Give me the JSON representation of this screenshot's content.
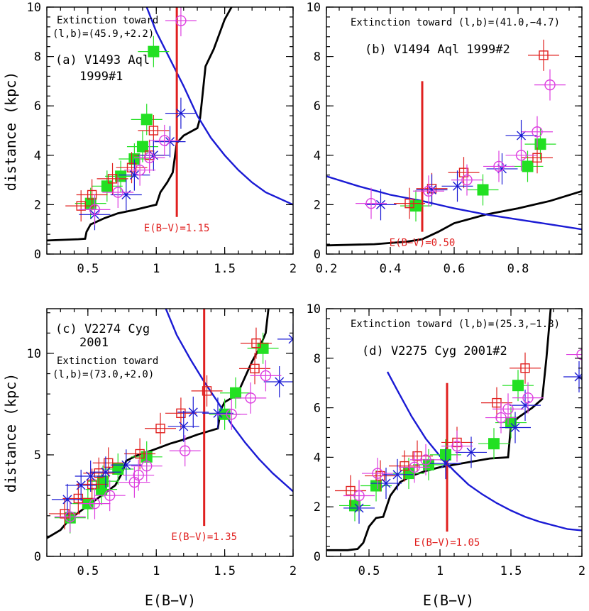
{
  "figure": {
    "ylabel": "distance (kpc)",
    "xlabel": "E(B−V)"
  },
  "colors": {
    "axis": "#000000",
    "black_curve": "#000000",
    "blue_curve": "#1a1ad4",
    "red_line": "#e0201f",
    "green": "#22e022",
    "red_marker": "#e0201f",
    "blue_marker": "#1a1ad4",
    "magenta_marker": "#dd3ee0"
  },
  "chart_data": [
    {
      "type": "scatter",
      "panel": "a",
      "label_lines": [
        "(a) V1493 Aql",
        "1999#1"
      ],
      "extinction_lines": [
        "Extinction toward",
        "(l,b)=(45.9,+2.2)"
      ],
      "xlim": [
        0.2,
        2.0
      ],
      "ylim": [
        0,
        10
      ],
      "xticks": [
        0.5,
        1,
        1.5,
        2
      ],
      "xtick_labels": [
        "0.5",
        "1",
        "1.5",
        "2"
      ],
      "yticks": [
        0,
        2,
        4,
        6,
        8,
        10
      ],
      "ytick_labels": [
        "0",
        "2",
        "4",
        "6",
        "8",
        "10"
      ],
      "ebv": 1.15,
      "ebv_label": "E(B−V)=1.15",
      "ebv_range": [
        1.5,
        10
      ],
      "black_curve": [
        [
          0.2,
          0.55
        ],
        [
          0.43,
          0.6
        ],
        [
          0.48,
          0.62
        ],
        [
          0.49,
          0.9
        ],
        [
          0.52,
          1.2
        ],
        [
          0.56,
          1.3
        ],
        [
          0.62,
          1.45
        ],
        [
          0.72,
          1.65
        ],
        [
          0.85,
          1.8
        ],
        [
          1.0,
          2.0
        ],
        [
          1.03,
          2.5
        ],
        [
          1.08,
          2.9
        ],
        [
          1.12,
          3.3
        ],
        [
          1.15,
          4.5
        ],
        [
          1.2,
          4.8
        ],
        [
          1.3,
          5.1
        ],
        [
          1.32,
          5.5
        ],
        [
          1.33,
          6.0
        ],
        [
          1.36,
          7.6
        ],
        [
          1.42,
          8.3
        ],
        [
          1.5,
          9.5
        ],
        [
          1.55,
          10.0
        ]
      ],
      "blue_curve": [
        [
          0.93,
          10.0
        ],
        [
          1.0,
          9.0
        ],
        [
          1.1,
          7.9
        ],
        [
          1.2,
          6.8
        ],
        [
          1.3,
          5.6
        ],
        [
          1.4,
          4.7
        ],
        [
          1.5,
          4.0
        ],
        [
          1.6,
          3.4
        ],
        [
          1.7,
          2.9
        ],
        [
          1.8,
          2.5
        ],
        [
          1.9,
          2.25
        ],
        [
          2.0,
          2.0
        ]
      ],
      "series": [
        {
          "marker": "square-filled",
          "color": "green",
          "points": [
            [
              0.52,
              2.05
            ],
            [
              0.64,
              2.75
            ],
            [
              0.74,
              3.15
            ],
            [
              0.84,
              3.85
            ],
            [
              0.9,
              4.35
            ],
            [
              0.93,
              5.45
            ],
            [
              0.98,
              8.2
            ]
          ]
        },
        {
          "marker": "square-open",
          "color": "red",
          "points": [
            [
              0.45,
              1.95
            ],
            [
              0.53,
              2.4
            ],
            [
              0.68,
              3.05
            ],
            [
              0.82,
              3.5
            ],
            [
              0.95,
              4.0
            ],
            [
              0.98,
              5.0
            ]
          ]
        },
        {
          "marker": "asterisk",
          "color": "blue",
          "points": [
            [
              0.55,
              1.6
            ],
            [
              0.78,
              2.4
            ],
            [
              0.84,
              3.2
            ],
            [
              0.98,
              4.0
            ],
            [
              1.1,
              4.55
            ],
            [
              1.18,
              5.7
            ]
          ]
        },
        {
          "marker": "circle-open",
          "color": "magenta",
          "points": [
            [
              0.55,
              1.8
            ],
            [
              0.72,
              2.5
            ],
            [
              0.88,
              3.4
            ],
            [
              0.95,
              3.9
            ],
            [
              1.06,
              4.6
            ],
            [
              1.18,
              9.45
            ]
          ]
        }
      ]
    },
    {
      "type": "scatter",
      "panel": "b",
      "label_lines": [
        "(b) V1494 Aql 1999#2"
      ],
      "extinction_lines": [
        "Extinction toward (l,b)=(41.0,−4.7)"
      ],
      "xlim": [
        0.2,
        1.0
      ],
      "ylim": [
        0,
        10
      ],
      "xticks": [
        0.2,
        0.4,
        0.6,
        0.8
      ],
      "xtick_labels": [
        "0.2",
        "0.4",
        "0.6",
        "0.8"
      ],
      "yticks": [
        0,
        2,
        4,
        6,
        8,
        10
      ],
      "ytick_labels": [
        "0",
        "2",
        "4",
        "6",
        "8",
        "10"
      ],
      "ebv": 0.5,
      "ebv_label": "E(B−V)=0.50",
      "ebv_range": [
        0.9,
        7.0
      ],
      "black_curve": [
        [
          0.2,
          0.35
        ],
        [
          0.35,
          0.4
        ],
        [
          0.45,
          0.5
        ],
        [
          0.5,
          0.6
        ],
        [
          0.55,
          0.9
        ],
        [
          0.6,
          1.25
        ],
        [
          0.7,
          1.6
        ],
        [
          0.8,
          1.85
        ],
        [
          0.9,
          2.15
        ],
        [
          1.0,
          2.55
        ]
      ],
      "blue_curve": [
        [
          0.2,
          3.15
        ],
        [
          0.3,
          2.75
        ],
        [
          0.4,
          2.4
        ],
        [
          0.5,
          2.15
        ],
        [
          0.6,
          1.85
        ],
        [
          0.7,
          1.6
        ],
        [
          0.8,
          1.4
        ],
        [
          0.9,
          1.2
        ],
        [
          1.0,
          1.0
        ]
      ],
      "series": [
        {
          "marker": "square-filled",
          "color": "green",
          "points": [
            [
              0.48,
              1.95
            ],
            [
              0.69,
              2.6
            ],
            [
              0.83,
              3.55
            ],
            [
              0.87,
              4.45
            ]
          ]
        },
        {
          "marker": "square-open",
          "color": "red",
          "points": [
            [
              0.46,
              2.05
            ],
            [
              0.53,
              2.65
            ],
            [
              0.63,
              3.3
            ],
            [
              0.86,
              3.9
            ],
            [
              0.88,
              8.05
            ]
          ]
        },
        {
          "marker": "asterisk",
          "color": "blue",
          "points": [
            [
              0.37,
              2.0
            ],
            [
              0.53,
              2.6
            ],
            [
              0.61,
              2.75
            ],
            [
              0.75,
              3.45
            ],
            [
              0.81,
              4.8
            ]
          ]
        },
        {
          "marker": "circle-open",
          "color": "magenta",
          "points": [
            [
              0.34,
              2.05
            ],
            [
              0.52,
              2.55
            ],
            [
              0.64,
              3.0
            ],
            [
              0.74,
              3.55
            ],
            [
              0.81,
              4.0
            ],
            [
              0.86,
              4.95
            ],
            [
              0.9,
              6.85
            ]
          ]
        }
      ]
    },
    {
      "type": "scatter",
      "panel": "c",
      "label_lines": [
        "(c) V2274 Cyg",
        "2001"
      ],
      "extinction_lines": [
        "Extinction toward",
        "(l,b)=(73.0,+2.0)"
      ],
      "xlim": [
        0.2,
        2.0
      ],
      "ylim": [
        0,
        12.2
      ],
      "xticks": [
        0.5,
        1,
        1.5,
        2
      ],
      "xtick_labels": [
        "0.5",
        "1",
        "1.5",
        "2"
      ],
      "yticks": [
        0,
        5,
        10
      ],
      "ytick_labels": [
        "0",
        "5",
        "10"
      ],
      "ebv": 1.35,
      "ebv_label": "E(B−V)=1.35",
      "ebv_range": [
        1.5,
        12.2
      ],
      "black_curve": [
        [
          0.2,
          0.9
        ],
        [
          0.3,
          1.3
        ],
        [
          0.35,
          1.7
        ],
        [
          0.4,
          2.0
        ],
        [
          0.5,
          2.5
        ],
        [
          0.6,
          3.0
        ],
        [
          0.7,
          3.5
        ],
        [
          0.75,
          4.1
        ],
        [
          0.78,
          4.7
        ],
        [
          0.85,
          4.95
        ],
        [
          0.98,
          5.25
        ],
        [
          1.1,
          5.55
        ],
        [
          1.2,
          5.75
        ],
        [
          1.3,
          6.0
        ],
        [
          1.45,
          6.3
        ],
        [
          1.47,
          7.2
        ],
        [
          1.5,
          7.6
        ],
        [
          1.55,
          7.8
        ],
        [
          1.6,
          8.1
        ],
        [
          1.7,
          9.6
        ],
        [
          1.75,
          10.2
        ],
        [
          1.8,
          11.0
        ],
        [
          1.82,
          12.2
        ]
      ],
      "blue_curve": [
        [
          1.07,
          12.2
        ],
        [
          1.15,
          10.9
        ],
        [
          1.25,
          9.7
        ],
        [
          1.35,
          8.6
        ],
        [
          1.45,
          7.6
        ],
        [
          1.55,
          6.5
        ],
        [
          1.65,
          5.6
        ],
        [
          1.75,
          4.8
        ],
        [
          1.85,
          4.1
        ],
        [
          1.95,
          3.5
        ],
        [
          2.0,
          3.2
        ]
      ],
      "series": [
        {
          "marker": "square-filled",
          "color": "green",
          "points": [
            [
              0.37,
              1.9
            ],
            [
              0.5,
              2.6
            ],
            [
              0.6,
              3.3
            ],
            [
              0.61,
              3.7
            ],
            [
              0.72,
              4.3
            ],
            [
              0.93,
              4.9
            ],
            [
              1.5,
              7.0
            ],
            [
              1.58,
              8.05
            ],
            [
              1.78,
              10.25
            ]
          ]
        },
        {
          "marker": "square-open",
          "color": "red",
          "points": [
            [
              0.33,
              2.1
            ],
            [
              0.43,
              2.85
            ],
            [
              0.53,
              3.55
            ],
            [
              0.58,
              4.1
            ],
            [
              0.65,
              4.6
            ],
            [
              0.88,
              5.05
            ],
            [
              1.03,
              6.3
            ],
            [
              1.18,
              7.05
            ],
            [
              1.37,
              8.15
            ],
            [
              1.72,
              9.25
            ],
            [
              1.73,
              10.5
            ]
          ]
        },
        {
          "marker": "asterisk",
          "color": "blue",
          "points": [
            [
              0.35,
              2.8
            ],
            [
              0.45,
              3.5
            ],
            [
              0.52,
              3.95
            ],
            [
              0.63,
              4.15
            ],
            [
              0.78,
              4.5
            ],
            [
              1.2,
              6.4
            ],
            [
              1.27,
              7.1
            ],
            [
              1.45,
              7.05
            ],
            [
              1.9,
              8.6
            ],
            [
              2.0,
              10.7
            ]
          ]
        },
        {
          "marker": "circle-open",
          "color": "magenta",
          "points": [
            [
              0.37,
              1.95
            ],
            [
              0.55,
              2.6
            ],
            [
              0.66,
              3.0
            ],
            [
              0.84,
              3.65
            ],
            [
              0.87,
              4.0
            ],
            [
              0.93,
              4.45
            ],
            [
              1.21,
              5.2
            ],
            [
              1.55,
              7.0
            ],
            [
              1.69,
              7.8
            ],
            [
              1.8,
              8.9
            ]
          ]
        }
      ]
    },
    {
      "type": "scatter",
      "panel": "d",
      "label_lines": [
        "(d) V2275 Cyg 2001#2"
      ],
      "extinction_lines": [
        "Extinction toward (l,b)=(25.3,−1.8)"
      ],
      "xlim": [
        0.2,
        2.0
      ],
      "ylim": [
        0,
        10
      ],
      "xticks": [
        0.5,
        1,
        1.5,
        2
      ],
      "xtick_labels": [
        "0.5",
        "1",
        "1.5",
        "2"
      ],
      "yticks": [
        0,
        2,
        4,
        6,
        8,
        10
      ],
      "ytick_labels": [
        "0",
        "2",
        "4",
        "6",
        "8",
        "10"
      ],
      "ebv": 1.05,
      "ebv_label": "E(B−V)=1.05",
      "ebv_range": [
        1.0,
        7.0
      ],
      "black_curve": [
        [
          0.2,
          0.25
        ],
        [
          0.35,
          0.25
        ],
        [
          0.42,
          0.3
        ],
        [
          0.46,
          0.55
        ],
        [
          0.5,
          1.2
        ],
        [
          0.55,
          1.55
        ],
        [
          0.6,
          1.6
        ],
        [
          0.65,
          2.45
        ],
        [
          0.72,
          3.0
        ],
        [
          0.8,
          3.25
        ],
        [
          0.9,
          3.45
        ],
        [
          1.0,
          3.6
        ],
        [
          1.1,
          3.7
        ],
        [
          1.2,
          3.8
        ],
        [
          1.35,
          3.95
        ],
        [
          1.48,
          4.0
        ],
        [
          1.5,
          5.3
        ],
        [
          1.55,
          5.6
        ],
        [
          1.65,
          6.0
        ],
        [
          1.72,
          6.35
        ],
        [
          1.75,
          8.0
        ],
        [
          1.78,
          10.0
        ]
      ],
      "blue_curve": [
        [
          0.63,
          7.45
        ],
        [
          0.7,
          6.7
        ],
        [
          0.8,
          5.65
        ],
        [
          0.9,
          4.75
        ],
        [
          1.0,
          4.05
        ],
        [
          1.1,
          3.45
        ],
        [
          1.2,
          2.9
        ],
        [
          1.3,
          2.5
        ],
        [
          1.4,
          2.15
        ],
        [
          1.5,
          1.85
        ],
        [
          1.6,
          1.6
        ],
        [
          1.7,
          1.4
        ],
        [
          1.8,
          1.25
        ],
        [
          1.9,
          1.1
        ],
        [
          2.0,
          1.05
        ]
      ],
      "series": [
        {
          "marker": "square-filled",
          "color": "green",
          "points": [
            [
              0.4,
              2.05
            ],
            [
              0.55,
              2.85
            ],
            [
              0.78,
              3.35
            ],
            [
              0.92,
              3.7
            ],
            [
              1.04,
              4.1
            ],
            [
              1.38,
              4.55
            ],
            [
              1.5,
              5.4
            ],
            [
              1.55,
              6.9
            ]
          ]
        },
        {
          "marker": "square-open",
          "color": "red",
          "points": [
            [
              0.37,
              2.65
            ],
            [
              0.58,
              3.25
            ],
            [
              0.75,
              3.65
            ],
            [
              0.84,
              4.05
            ],
            [
              1.12,
              4.6
            ],
            [
              1.4,
              6.2
            ],
            [
              1.6,
              7.6
            ]
          ]
        },
        {
          "marker": "asterisk",
          "color": "blue",
          "points": [
            [
              0.43,
              1.95
            ],
            [
              0.62,
              2.95
            ],
            [
              0.7,
              3.3
            ],
            [
              1.04,
              3.75
            ],
            [
              1.22,
              4.2
            ],
            [
              1.53,
              5.2
            ],
            [
              1.6,
              6.1
            ],
            [
              1.98,
              7.25
            ]
          ]
        },
        {
          "marker": "circle-open",
          "color": "magenta",
          "points": [
            [
              0.43,
              2.45
            ],
            [
              0.56,
              3.35
            ],
            [
              0.82,
              3.6
            ],
            [
              0.9,
              3.9
            ],
            [
              1.12,
              4.45
            ],
            [
              1.43,
              5.6
            ],
            [
              1.48,
              5.95
            ],
            [
              1.62,
              6.4
            ],
            [
              2.0,
              8.15
            ]
          ]
        }
      ]
    }
  ]
}
